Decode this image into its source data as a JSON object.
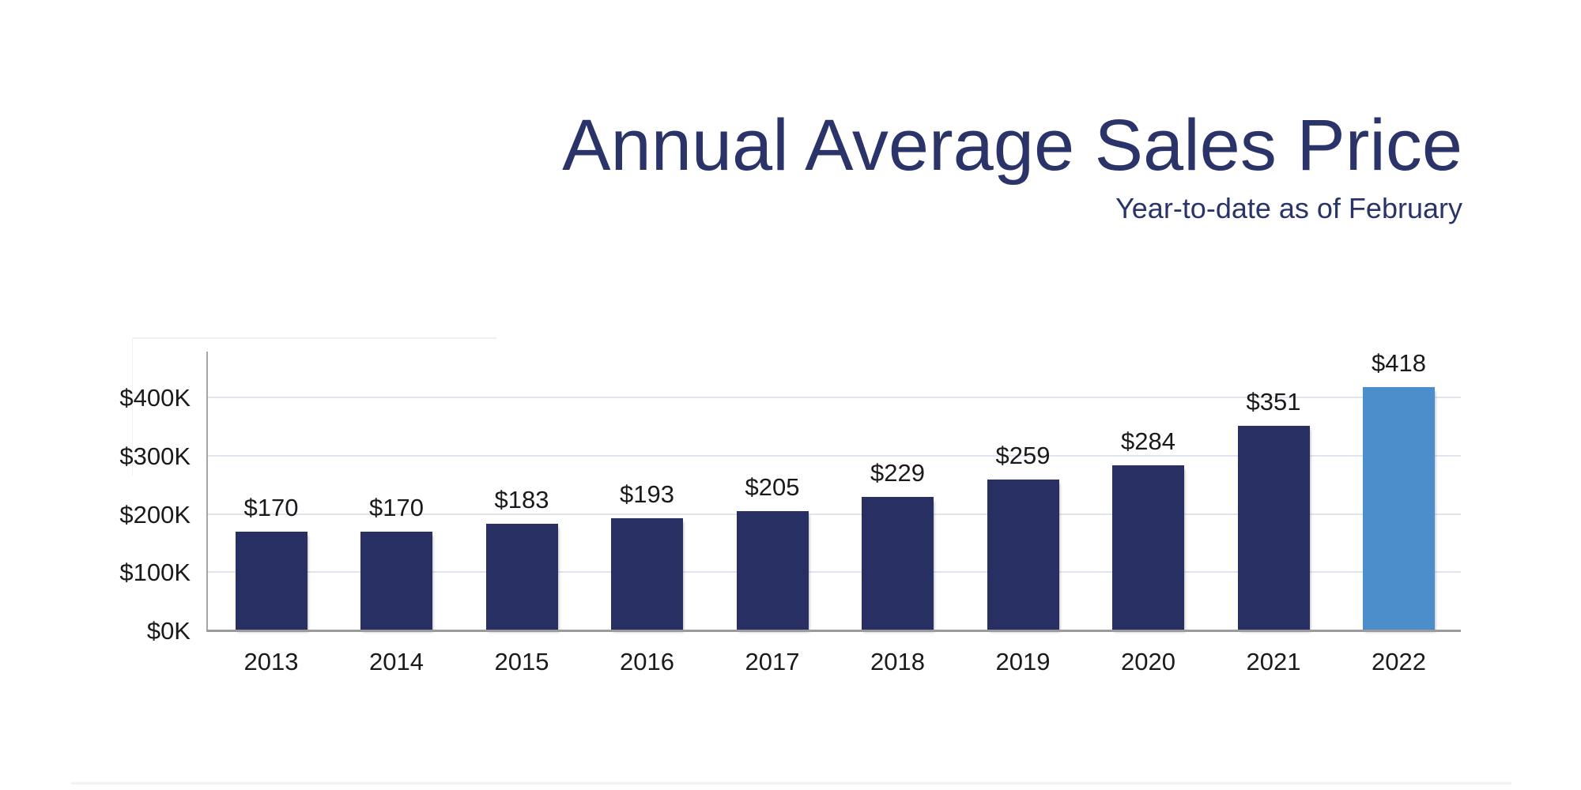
{
  "title": "Annual Average Sales Price",
  "subtitle": "Year-to-date as of February",
  "colors": {
    "bar_default": "#272F63",
    "bar_highlight": "#4C8DCB",
    "title_text": "#2A3468",
    "gridline": "#DEE5EF",
    "axis_line": "#A6A6A6",
    "baseline": "#9B9B9B",
    "label_text": "#1A1A1A"
  },
  "chart_data": {
    "type": "bar",
    "title": "Annual Average Sales Price",
    "subtitle": "Year-to-date as of February",
    "categories": [
      "2013",
      "2014",
      "2015",
      "2016",
      "2017",
      "2018",
      "2019",
      "2020",
      "2021",
      "2022"
    ],
    "values": [
      170,
      170,
      183,
      193,
      205,
      229,
      259,
      284,
      351,
      418
    ],
    "value_labels": [
      "$170",
      "$170",
      "$183",
      "$193",
      "$205",
      "$229",
      "$259",
      "$284",
      "$351",
      "$418"
    ],
    "units": "USD thousands",
    "highlight_index": 9,
    "xlabel": "",
    "ylabel": "",
    "ylim": [
      0,
      480
    ],
    "grid": true,
    "legend": "none",
    "yticks": [
      {
        "value": 0,
        "label": "$0K"
      },
      {
        "value": 100,
        "label": "$100K"
      },
      {
        "value": 200,
        "label": "$200K"
      },
      {
        "value": 300,
        "label": "$300K"
      },
      {
        "value": 400,
        "label": "$400K"
      }
    ]
  }
}
